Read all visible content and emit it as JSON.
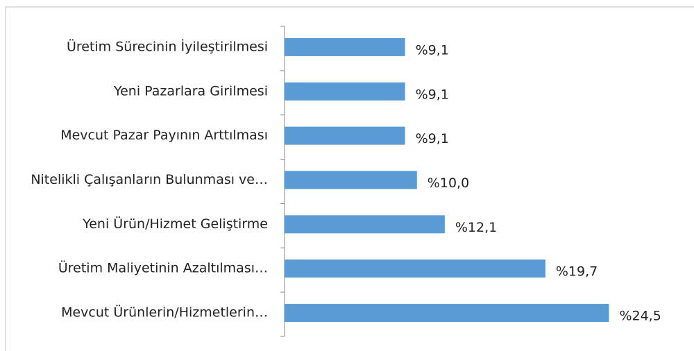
{
  "chart_data": {
    "type": "bar",
    "orientation": "horizontal",
    "categories": [
      "Üretim Sürecinin İyileştirilmesi",
      "Yeni Pazarlara Girilmesi",
      "Mevcut Pazar Payının Arttılması",
      "Nitelikli Çalışanların Bulunması ve…",
      "Yeni Ürün/Hizmet Geliştirme",
      "Üretim Maliyetinin Azaltılması…",
      "Mevcut Ürünlerin/Hizmetlerin…"
    ],
    "values": [
      9.1,
      9.1,
      9.1,
      10.0,
      12.1,
      19.7,
      24.5
    ],
    "value_labels": [
      "%9,1",
      "%9,1",
      "%9,1",
      "%10,0",
      "%12,1",
      "%19,7",
      "%24,5"
    ],
    "color": "#5b9bd5",
    "xlim": [
      0,
      25
    ]
  }
}
